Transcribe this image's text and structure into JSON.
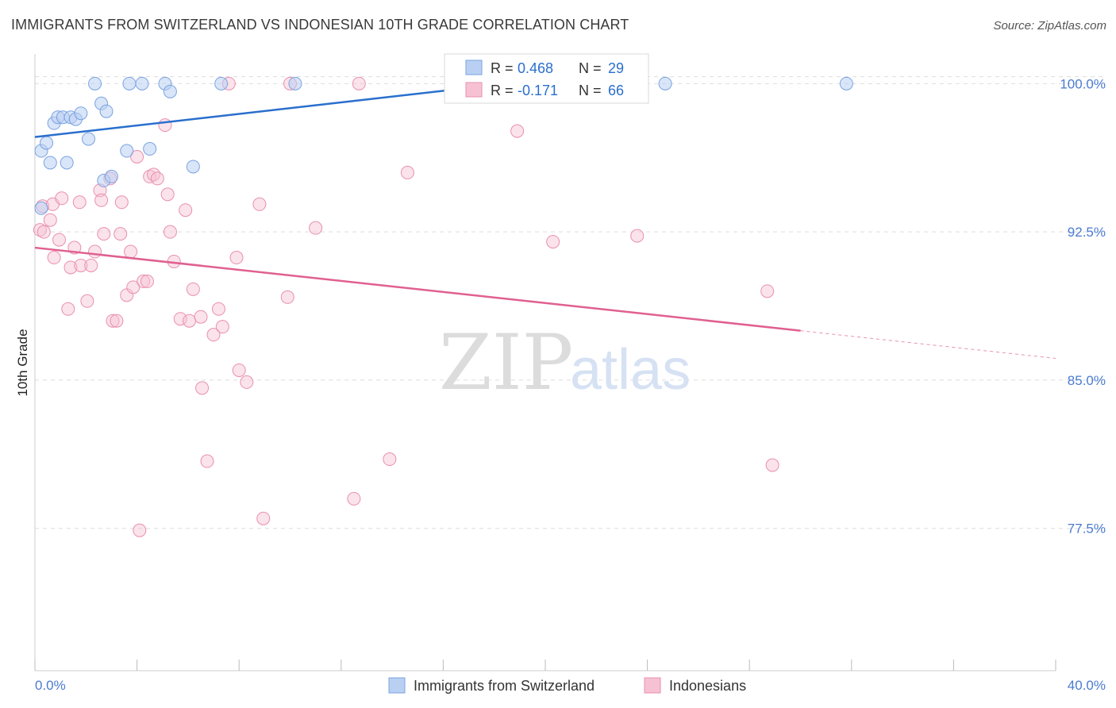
{
  "title": "IMMIGRANTS FROM SWITZERLAND VS INDONESIAN 10TH GRADE CORRELATION CHART",
  "source": "Source: ZipAtlas.com",
  "watermark": {
    "zip": "ZIP",
    "atlas": "atlas"
  },
  "colors": {
    "blue_fill": "#b9d0f2",
    "blue_stroke": "#7aa3e0",
    "blue_line": "#2a6fcd",
    "pink_fill": "#f6c2d3",
    "pink_stroke": "#e98fb0",
    "pink_line": "#e06090",
    "tick_text": "#4a7bd0",
    "grid": "#dddddd"
  },
  "legend_stats": [
    {
      "r_label": "R =",
      "r_value": "0.468",
      "n_label": "N =",
      "n_value": "29",
      "series": "Immigrants from Switzerland"
    },
    {
      "r_label": "R =",
      "r_value": "-0.171",
      "n_label": "N =",
      "n_value": "66",
      "series": "Indonesians"
    }
  ],
  "chart_data": {
    "type": "scatter",
    "title": "IMMIGRANTS FROM SWITZERLAND VS INDONESIAN 10TH GRADE CORRELATION CHART",
    "xlabel": "",
    "ylabel": "10th Grade",
    "xlim": [
      0,
      40
    ],
    "ylim": [
      70.3,
      101.5
    ],
    "x_tick_labels": [
      "0.0%",
      "40.0%"
    ],
    "y_ticks": [
      77.5,
      85.0,
      92.5,
      100.0
    ],
    "y_tick_labels": [
      "77.5%",
      "85.0%",
      "92.5%",
      "100.0%"
    ],
    "grid": true,
    "legend_position": "bottom",
    "series": [
      {
        "name": "Immigrants from Switzerland",
        "color": "#b9d0f2",
        "trend": {
          "x": [
            0.0,
            18.5
          ],
          "y": [
            97.3,
            100.0
          ]
        },
        "points": [
          [
            0.25,
            93.7
          ],
          [
            0.25,
            96.6
          ],
          [
            0.45,
            97.0
          ],
          [
            0.6,
            96.0
          ],
          [
            0.75,
            98.0
          ],
          [
            0.9,
            98.3
          ],
          [
            1.1,
            98.3
          ],
          [
            1.4,
            98.3
          ],
          [
            1.6,
            98.2
          ],
          [
            1.8,
            98.5
          ],
          [
            2.1,
            97.2
          ],
          [
            2.6,
            99.0
          ],
          [
            2.8,
            98.6
          ],
          [
            1.25,
            96.0
          ],
          [
            2.35,
            100.0
          ],
          [
            2.7,
            95.1
          ],
          [
            3.0,
            95.3
          ],
          [
            3.6,
            96.6
          ],
          [
            3.7,
            100.0
          ],
          [
            4.2,
            100.0
          ],
          [
            4.5,
            96.7
          ],
          [
            5.1,
            100.0
          ],
          [
            5.3,
            99.6
          ],
          [
            6.2,
            95.8
          ],
          [
            7.3,
            100.0
          ],
          [
            10.2,
            100.0
          ],
          [
            18.5,
            100.0
          ],
          [
            24.7,
            100.0
          ],
          [
            31.8,
            100.0
          ]
        ]
      },
      {
        "name": "Indonesians",
        "color": "#f6c2d3",
        "trend": {
          "x": [
            0.0,
            30.0
          ],
          "y": [
            91.7,
            87.5
          ]
        },
        "trend_extension": {
          "x": [
            30.0,
            40.0
          ],
          "y": [
            87.5,
            86.1
          ]
        },
        "points": [
          [
            0.2,
            92.6
          ],
          [
            0.3,
            93.8
          ],
          [
            0.35,
            92.5
          ],
          [
            0.6,
            93.1
          ],
          [
            0.7,
            93.9
          ],
          [
            0.75,
            91.2
          ],
          [
            0.95,
            92.1
          ],
          [
            1.05,
            94.2
          ],
          [
            1.3,
            88.6
          ],
          [
            1.4,
            90.7
          ],
          [
            1.55,
            91.7
          ],
          [
            1.75,
            94.0
          ],
          [
            1.8,
            90.8
          ],
          [
            2.05,
            89.0
          ],
          [
            2.2,
            90.8
          ],
          [
            2.35,
            91.5
          ],
          [
            2.55,
            94.6
          ],
          [
            2.6,
            94.1
          ],
          [
            2.7,
            92.4
          ],
          [
            2.95,
            95.2
          ],
          [
            3.05,
            88.0
          ],
          [
            3.2,
            88.0
          ],
          [
            3.35,
            92.4
          ],
          [
            3.4,
            94.0
          ],
          [
            3.6,
            89.3
          ],
          [
            3.75,
            91.5
          ],
          [
            3.85,
            89.7
          ],
          [
            4.0,
            96.3
          ],
          [
            4.1,
            77.4
          ],
          [
            4.25,
            90.0
          ],
          [
            4.4,
            90.0
          ],
          [
            4.5,
            95.3
          ],
          [
            4.65,
            95.4
          ],
          [
            4.8,
            95.2
          ],
          [
            5.1,
            97.9
          ],
          [
            5.2,
            94.4
          ],
          [
            5.3,
            92.5
          ],
          [
            5.45,
            91.0
          ],
          [
            5.7,
            88.1
          ],
          [
            5.9,
            93.6
          ],
          [
            6.05,
            88.0
          ],
          [
            6.2,
            89.6
          ],
          [
            6.5,
            88.2
          ],
          [
            6.55,
            84.6
          ],
          [
            6.75,
            80.9
          ],
          [
            7.0,
            87.3
          ],
          [
            7.2,
            88.6
          ],
          [
            7.35,
            87.7
          ],
          [
            7.6,
            100.0
          ],
          [
            7.9,
            91.2
          ],
          [
            8.0,
            85.5
          ],
          [
            8.3,
            84.9
          ],
          [
            8.8,
            93.9
          ],
          [
            8.95,
            78.0
          ],
          [
            9.9,
            89.2
          ],
          [
            10.0,
            100.0
          ],
          [
            11.0,
            92.7
          ],
          [
            12.5,
            79.0
          ],
          [
            12.7,
            100.0
          ],
          [
            13.9,
            81.0
          ],
          [
            14.6,
            95.5
          ],
          [
            18.9,
            97.6
          ],
          [
            20.3,
            92.0
          ],
          [
            23.6,
            92.3
          ],
          [
            28.7,
            89.5
          ],
          [
            28.9,
            80.7
          ]
        ]
      }
    ]
  }
}
